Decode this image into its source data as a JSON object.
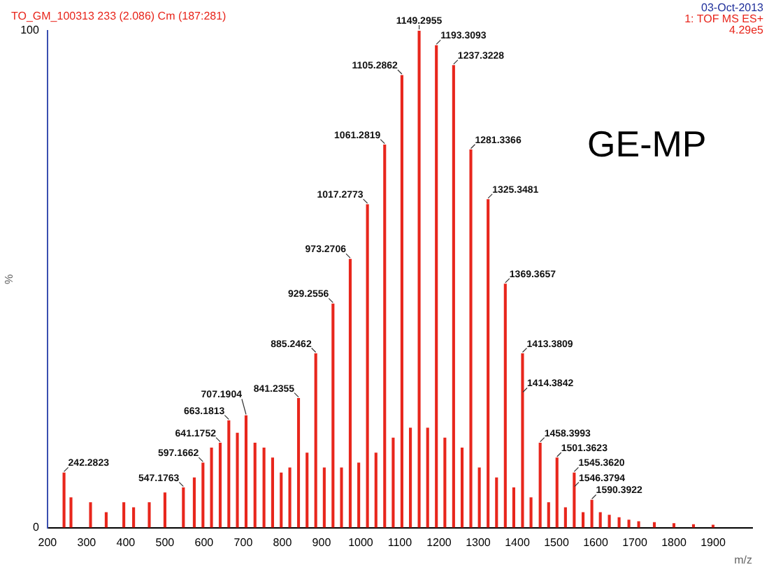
{
  "chart_data": {
    "type": "bar",
    "title": "TO_GM_100313 233 (2.086) Cm (187:281)",
    "xlabel": "m/z",
    "ylabel": "%",
    "annotations": [
      "03-Oct-2013",
      "1: TOF MS ES+",
      "4.29e5",
      "GE-MP",
      {
        "text": "242.2823",
        "x": 242.2823,
        "y": 11
      },
      {
        "text": "547.1763",
        "x": 547.1763,
        "y": 8
      },
      {
        "text": "597.1662",
        "x": 597.1662,
        "y": 13
      },
      {
        "text": "641.1752",
        "x": 641.1752,
        "y": 17
      },
      {
        "text": "663.1813",
        "x": 663.1813,
        "y": 21.5
      },
      {
        "text": "707.1904",
        "x": 707.1904,
        "y": 22.5
      },
      {
        "text": "841.2355",
        "x": 841.2355,
        "y": 26
      },
      {
        "text": "885.2462",
        "x": 885.2462,
        "y": 35
      },
      {
        "text": "929.2556",
        "x": 929.2556,
        "y": 45
      },
      {
        "text": "973.2706",
        "x": 973.2706,
        "y": 54
      },
      {
        "text": "1017.2773",
        "x": 1017.2773,
        "y": 65
      },
      {
        "text": "1061.2819",
        "x": 1061.2819,
        "y": 77
      },
      {
        "text": "1105.2862",
        "x": 1105.2862,
        "y": 91
      },
      {
        "text": "1149.2955",
        "x": 1149.2955,
        "y": 100
      },
      {
        "text": "1193.3093",
        "x": 1193.3093,
        "y": 97
      },
      {
        "text": "1237.3228",
        "x": 1237.3228,
        "y": 93
      },
      {
        "text": "1281.3366",
        "x": 1281.3366,
        "y": 76
      },
      {
        "text": "1325.3481",
        "x": 1325.3481,
        "y": 66
      },
      {
        "text": "1369.3657",
        "x": 1369.3657,
        "y": 49
      },
      {
        "text": "1413.3809",
        "x": 1413.3809,
        "y": 35
      },
      {
        "text": "1414.3842",
        "x": 1414.3842,
        "y": 27
      },
      {
        "text": "1458.3993",
        "x": 1458.3993,
        "y": 17
      },
      {
        "text": "1501.3623",
        "x": 1501.3623,
        "y": 14
      },
      {
        "text": "1545.3620",
        "x": 1545.362,
        "y": 11
      },
      {
        "text": "1546.3794",
        "x": 1546.3794,
        "y": 8
      },
      {
        "text": "1590.3922",
        "x": 1590.3922,
        "y": 5.5
      }
    ],
    "x": [
      242.2823,
      260,
      310,
      350,
      395,
      420,
      460,
      500,
      547.1763,
      575,
      597.1662,
      619,
      641.1752,
      663.1813,
      685,
      707.1904,
      730,
      753,
      775,
      797,
      819,
      841.2355,
      863,
      885.2462,
      907,
      929.2556,
      951,
      973.2706,
      995,
      1017.2773,
      1039,
      1061.2819,
      1083,
      1105.2862,
      1127,
      1149.2955,
      1171,
      1193.3093,
      1215,
      1237.3228,
      1259,
      1281.3366,
      1303,
      1325.3481,
      1347,
      1369.3657,
      1391,
      1413.3809,
      1414.3842,
      1435,
      1458.3993,
      1480,
      1501.3623,
      1523,
      1545.362,
      1546.3794,
      1568,
      1590.3922,
      1612,
      1635,
      1660,
      1685,
      1710,
      1750,
      1800,
      1850,
      1900
    ],
    "values": [
      11,
      6,
      5,
      3,
      5,
      4,
      5,
      7,
      8,
      10,
      13,
      16,
      17,
      21.5,
      19,
      22.5,
      17,
      16,
      14,
      11,
      12,
      26,
      15,
      35,
      12,
      45,
      12,
      54,
      13,
      65,
      15,
      77,
      18,
      91,
      20,
      100,
      20,
      97,
      18,
      93,
      16,
      76,
      12,
      66,
      10,
      49,
      8,
      35,
      null,
      6,
      17,
      5,
      14,
      4,
      11,
      null,
      3,
      5.5,
      3,
      2.5,
      2,
      1.5,
      1.2,
      1,
      0.8,
      0.6,
      0.5
    ],
    "color": "#e8261c",
    "xlim": [
      200,
      2000
    ],
    "xticks": [
      200,
      300,
      400,
      500,
      600,
      700,
      800,
      900,
      1000,
      1100,
      1200,
      1300,
      1400,
      1500,
      1600,
      1700,
      1800,
      1900
    ],
    "ylim": [
      0,
      100
    ],
    "yticks": [
      0,
      100
    ],
    "grid": false,
    "legend": false
  }
}
